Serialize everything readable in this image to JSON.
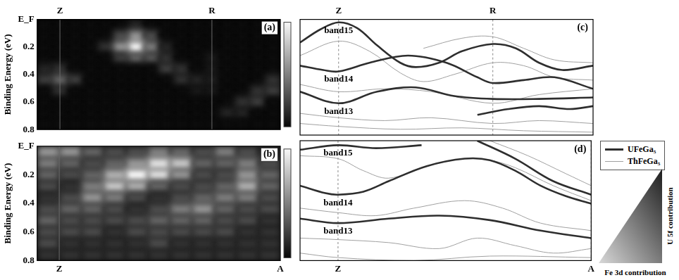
{
  "chart_data": [
    {
      "type": "heatmap",
      "panel_label": "(a)",
      "y_label": "Binding Energy (eV)",
      "xlim": [
        -0.15,
        1.45
      ],
      "xticks": [
        {
          "value": 0,
          "label": "Z"
        },
        {
          "value": 1,
          "label": "R"
        }
      ],
      "ylim": [
        0,
        0.8
      ],
      "yticks": [
        {
          "value": 0,
          "label": "E_F"
        },
        0.2,
        0.4,
        0.6,
        0.8
      ],
      "grid": true,
      "x": [
        -0.1,
        0,
        0.1,
        0.2,
        0.3,
        0.4,
        0.5,
        0.6,
        0.7,
        0.8,
        0.9,
        1.0,
        1.1,
        1.2,
        1.3,
        1.4
      ],
      "y": [
        0.04,
        0.12,
        0.2,
        0.28,
        0.36,
        0.44,
        0.52,
        0.6,
        0.68,
        0.76
      ],
      "zlim": [
        0,
        1
      ],
      "z": [
        [
          0.05,
          0.05,
          0.05,
          0.05,
          0.05,
          0.05,
          0.15,
          0.05,
          0.05,
          0.05,
          0.05,
          0.05,
          0.05,
          0.05,
          0.05,
          0.05
        ],
        [
          0.05,
          0.05,
          0.05,
          0.05,
          0.05,
          0.3,
          0.6,
          0.3,
          0.05,
          0.05,
          0.05,
          0.05,
          0.05,
          0.05,
          0.05,
          0.05
        ],
        [
          0.05,
          0.05,
          0.05,
          0.05,
          0.2,
          0.6,
          1.0,
          0.5,
          0.15,
          0.05,
          0.05,
          0.05,
          0.05,
          0.05,
          0.05,
          0.05
        ],
        [
          0.05,
          0.05,
          0.05,
          0.05,
          0.05,
          0.25,
          0.4,
          0.35,
          0.2,
          0.05,
          0.05,
          0.1,
          0.05,
          0.05,
          0.05,
          0.05
        ],
        [
          0.15,
          0.2,
          0.05,
          0.05,
          0.05,
          0.05,
          0.05,
          0.05,
          0.25,
          0.2,
          0.05,
          0.1,
          0.05,
          0.05,
          0.05,
          0.05
        ],
        [
          0.25,
          0.4,
          0.25,
          0.05,
          0.05,
          0.05,
          0.05,
          0.05,
          0.05,
          0.2,
          0.15,
          0.12,
          0.05,
          0.05,
          0.05,
          0.2
        ],
        [
          0.05,
          0.2,
          0.05,
          0.05,
          0.05,
          0.05,
          0.05,
          0.05,
          0.05,
          0.05,
          0.1,
          0.1,
          0.05,
          0.05,
          0.2,
          0.25
        ],
        [
          0.05,
          0.05,
          0.05,
          0.05,
          0.05,
          0.05,
          0.05,
          0.05,
          0.05,
          0.05,
          0.05,
          0.05,
          0.05,
          0.2,
          0.25,
          0.05
        ],
        [
          0.05,
          0.05,
          0.05,
          0.05,
          0.05,
          0.05,
          0.05,
          0.05,
          0.05,
          0.05,
          0.05,
          0.05,
          0.15,
          0.15,
          0.05,
          0.05
        ],
        [
          0.05,
          0.05,
          0.05,
          0.05,
          0.05,
          0.05,
          0.05,
          0.05,
          0.05,
          0.05,
          0.05,
          0.05,
          0.05,
          0.05,
          0.05,
          0.05
        ]
      ]
    },
    {
      "type": "heatmap",
      "panel_label": "(b)",
      "y_label": "Binding Energy (eV)",
      "xlim": [
        -0.1,
        1.0
      ],
      "xticks": [
        {
          "value": 0,
          "label": "Z"
        },
        {
          "value": 1,
          "label": "A"
        }
      ],
      "ylim": [
        0,
        0.8
      ],
      "yticks": [
        {
          "value": 0,
          "label": "E_F"
        },
        0.2,
        0.4,
        0.6,
        0.8
      ],
      "grid": true,
      "x": [
        -0.05,
        0.05,
        0.15,
        0.25,
        0.35,
        0.45,
        0.55,
        0.65,
        0.75,
        0.85,
        0.95
      ],
      "y": [
        0.04,
        0.12,
        0.2,
        0.28,
        0.36,
        0.44,
        0.52,
        0.6,
        0.68,
        0.76
      ],
      "zlim": [
        0,
        1
      ],
      "z": [
        [
          0.6,
          0.6,
          0.4,
          0.3,
          0.3,
          0.5,
          0.4,
          0.3,
          0.5,
          0.3,
          0.2
        ],
        [
          0.5,
          0.4,
          0.3,
          0.4,
          0.6,
          0.9,
          0.8,
          0.4,
          0.4,
          0.5,
          0.3
        ],
        [
          0.4,
          0.3,
          0.4,
          0.7,
          1.0,
          0.9,
          0.6,
          0.3,
          0.3,
          0.6,
          0.4
        ],
        [
          0.3,
          0.2,
          0.5,
          0.8,
          0.7,
          0.4,
          0.3,
          0.3,
          0.4,
          0.7,
          0.4
        ],
        [
          0.2,
          0.3,
          0.6,
          0.5,
          0.3,
          0.2,
          0.3,
          0.4,
          0.5,
          0.5,
          0.3
        ],
        [
          0.3,
          0.4,
          0.4,
          0.3,
          0.2,
          0.3,
          0.5,
          0.6,
          0.4,
          0.3,
          0.3
        ],
        [
          0.4,
          0.3,
          0.3,
          0.3,
          0.3,
          0.4,
          0.4,
          0.4,
          0.3,
          0.3,
          0.2
        ],
        [
          0.3,
          0.3,
          0.3,
          0.2,
          0.3,
          0.3,
          0.3,
          0.3,
          0.3,
          0.2,
          0.2
        ],
        [
          0.3,
          0.2,
          0.2,
          0.2,
          0.2,
          0.3,
          0.2,
          0.2,
          0.2,
          0.2,
          0.2
        ],
        [
          0.2,
          0.2,
          0.2,
          0.2,
          0.2,
          0.2,
          0.2,
          0.2,
          0.2,
          0.2,
          0.2
        ]
      ]
    },
    {
      "type": "line",
      "panel_label": "(c)",
      "xlim": [
        -0.25,
        1.65
      ],
      "xticks": [
        {
          "value": 0,
          "label": "Z"
        },
        {
          "value": 1,
          "label": "R"
        }
      ],
      "ylim": [
        0,
        0.8
      ],
      "yticks": [
        {
          "value": 0,
          "label": "E_F"
        },
        0.2,
        0.4,
        0.6,
        0.8
      ],
      "tick_labels": "x",
      "grid": true,
      "series": [
        {
          "color": "#2e2e2e",
          "curves": [
            {
              "label": "band15",
              "x": [
                -0.25,
                -0.12,
                0,
                0.12,
                0.25,
                0.4,
                0.5,
                0.65,
                0.8,
                1,
                1.15,
                1.3,
                1.45,
                1.65
              ],
              "y": [
                0.16,
                0.07,
                0.02,
                0.06,
                0.18,
                0.3,
                0.33,
                0.3,
                0.22,
                0.17,
                0.2,
                0.3,
                0.35,
                0.32
              ]
            },
            {
              "label": "band14",
              "x": [
                -0.25,
                -0.1,
                0,
                0.2,
                0.45,
                0.7,
                0.9,
                1,
                1.2,
                1.4,
                1.65
              ],
              "y": [
                0.32,
                0.35,
                0.36,
                0.3,
                0.25,
                0.3,
                0.4,
                0.44,
                0.42,
                0.4,
                0.48
              ]
            },
            {
              "label": "band13",
              "x": [
                -0.25,
                0,
                0.25,
                0.5,
                0.75,
                1,
                1.3,
                1.65
              ],
              "y": [
                0.5,
                0.58,
                0.5,
                0.47,
                0.53,
                0.55,
                0.55,
                0.54
              ]
            },
            {
              "x": [
                0.9,
                1.1,
                1.3,
                1.5,
                1.65
              ],
              "y": [
                0.66,
                0.62,
                0.6,
                0.62,
                0.6
              ]
            }
          ]
        },
        {
          "color": "#a0a0a0",
          "curves": [
            {
              "x": [
                -0.25,
                0,
                0.2,
                0.4,
                0.55,
                0.75,
                1,
                1.2,
                1.4,
                1.65
              ],
              "y": [
                0.25,
                0.15,
                0.22,
                0.37,
                0.43,
                0.38,
                0.3,
                0.32,
                0.4,
                0.42
              ]
            },
            {
              "x": [
                -0.25,
                0,
                0.3,
                0.6,
                1,
                1.3,
                1.65
              ],
              "y": [
                0.45,
                0.5,
                0.48,
                0.5,
                0.58,
                0.52,
                0.48
              ]
            },
            {
              "x": [
                -0.25,
                0,
                0.3,
                0.6,
                1,
                1.3,
                1.65
              ],
              "y": [
                0.65,
                0.68,
                0.7,
                0.68,
                0.72,
                0.7,
                0.72
              ]
            },
            {
              "x": [
                -0.25,
                0,
                0.4,
                0.8,
                1.2,
                1.65
              ],
              "y": [
                0.72,
                0.74,
                0.76,
                0.75,
                0.77,
                0.78
              ]
            },
            {
              "x": [
                0.55,
                0.8,
                1,
                1.2,
                1.4,
                1.65
              ],
              "y": [
                0.2,
                0.13,
                0.12,
                0.2,
                0.28,
                0.3
              ]
            }
          ]
        }
      ]
    },
    {
      "type": "line",
      "panel_label": "(d)",
      "xlim": [
        -0.15,
        1.0
      ],
      "xticks": [
        {
          "value": 0,
          "label": "Z"
        },
        {
          "value": 1,
          "label": "A"
        }
      ],
      "ylim": [
        0,
        0.8
      ],
      "yticks": [
        {
          "value": 0,
          "label": "E_F"
        },
        0.2,
        0.4,
        0.6,
        0.8
      ],
      "tick_labels": "x",
      "grid": true,
      "legend": "right",
      "series": [
        {
          "name": "UFeGa₅",
          "color": "#2e2e2e",
          "curves": [
            {
              "label": "band15",
              "x": [
                -0.15,
                0,
                0.15,
                0.33
              ],
              "y": [
                0.06,
                0.03,
                0.05,
                0.03
              ]
            },
            {
              "label": "band14",
              "x": [
                -0.15,
                -0.05,
                0,
                0.1,
                0.2,
                0.35,
                0.5,
                0.6,
                0.7,
                0.8,
                0.9,
                1
              ],
              "y": [
                0.3,
                0.35,
                0.36,
                0.34,
                0.27,
                0.17,
                0.12,
                0.13,
                0.2,
                0.3,
                0.37,
                0.42
              ]
            },
            {
              "label": "band13",
              "x": [
                -0.15,
                0,
                0.2,
                0.4,
                0.6,
                0.8,
                1
              ],
              "y": [
                0.52,
                0.55,
                0.52,
                0.5,
                0.53,
                0.6,
                0.65
              ]
            },
            {
              "x": [
                0.55,
                0.7,
                0.85,
                1
              ],
              "y": [
                0,
                0.12,
                0.27,
                0.36
              ]
            }
          ]
        },
        {
          "name": "ThFeGa₅",
          "color": "#a0a0a0",
          "curves": [
            {
              "x": [
                -0.15,
                0,
                0.1,
                0.2,
                0.35,
                0.5,
                0.6,
                0.7,
                0.85,
                1
              ],
              "y": [
                0.1,
                0.12,
                0.2,
                0.25,
                0.17,
                0.12,
                0.13,
                0.18,
                0.3,
                0.4
              ]
            },
            {
              "x": [
                -0.15,
                0,
                0.15,
                0.3,
                0.5,
                0.65,
                0.8,
                1
              ],
              "y": [
                0.45,
                0.48,
                0.5,
                0.45,
                0.4,
                0.45,
                0.55,
                0.6
              ]
            },
            {
              "x": [
                -0.15,
                0,
                0.2,
                0.4,
                0.55,
                0.7,
                0.85,
                1
              ],
              "y": [
                0.65,
                0.66,
                0.68,
                0.72,
                0.65,
                0.7,
                0.75,
                0.72
              ]
            },
            {
              "x": [
                -0.15,
                0,
                0.3,
                0.6,
                1
              ],
              "y": [
                0.75,
                0.78,
                0.8,
                0.77,
                0.78
              ]
            },
            {
              "x": [
                0.6,
                0.75,
                0.9,
                1
              ],
              "y": [
                0,
                0.1,
                0.22,
                0.3
              ]
            }
          ]
        }
      ]
    }
  ],
  "color_key": {
    "x_label": "Fe 3d contribution",
    "y_label": "U 5f contribution"
  }
}
